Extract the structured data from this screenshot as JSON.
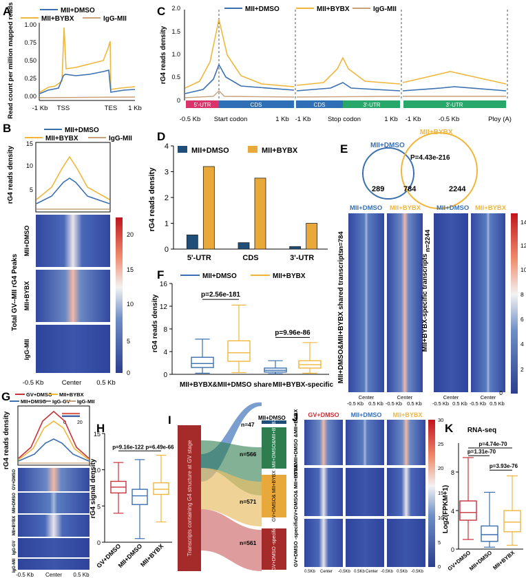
{
  "colors": {
    "dmso": "#3a6fb0",
    "bybx": "#f0b63a",
    "igg": "#c9a07a",
    "gv": "#c8313a",
    "navy": "#1f4e79",
    "gold": "#e8a93a",
    "green": "#2e7d4f",
    "red": "#a52a2a"
  },
  "panels": {
    "A": "A",
    "B": "B",
    "C": "C",
    "D": "D",
    "E": "E",
    "F": "F",
    "G": "G",
    "H": "H",
    "I": "I",
    "J": "J",
    "K": "K"
  },
  "legend": {
    "dmso": "MII+DMSO",
    "bybx": "MII+BYBX",
    "igg": "IgG-MII",
    "gv_dmso": "GV+DMSO",
    "igg_gv": "IgG-GV"
  },
  "panelA": {
    "ylabel": "Read count per million mapped reads",
    "yticks": [
      "0.00",
      "0.25",
      "0.50",
      "0.75",
      "1.00"
    ],
    "xticks": [
      "-1 Kb",
      "TSS",
      "TES",
      "1 Kb"
    ]
  },
  "panelB": {
    "ylabel": "rG4 reads density",
    "yticks": [
      "5",
      "10",
      "15",
      "20"
    ],
    "cbar_ticks": [
      "0",
      "5",
      "10",
      "15",
      "20"
    ],
    "row_labels": [
      "MII+DMSO",
      "MII+BYBX",
      "IgG-MII"
    ],
    "side_label": "Total GV--MII rG4 Peaks",
    "xticks": [
      "-0.5 Kb",
      "Center",
      "0.5 Kb"
    ]
  },
  "panelC": {
    "ylabel": "rG4 reads density",
    "yticks": [
      "0",
      "0.5",
      "1.0",
      "1.5",
      "2.0"
    ],
    "seg1": [
      "5'-UTR",
      "CDS"
    ],
    "seg2": [
      "CDS",
      "3'-UTR"
    ],
    "seg3": [
      "3'-UTR"
    ],
    "xticks1": [
      "-0.5 Kb",
      "Start codon",
      "1 Kb"
    ],
    "xticks2": [
      "-1 Kb",
      "Stop codon",
      "1 Kb"
    ],
    "xticks3": [
      "-1 Kb",
      "-0.5 Kb",
      "Ploy (A)"
    ]
  },
  "chart_data": [
    {
      "type": "bar",
      "panel": "D",
      "title": "",
      "ylabel": "rG4 reads density",
      "categories": [
        "5'-UTR",
        "CDS",
        "3'-UTR"
      ],
      "series": [
        {
          "name": "MII+DMSO",
          "values": [
            0.55,
            0.25,
            0.1
          ]
        },
        {
          "name": "MII+BYBX",
          "values": [
            3.2,
            2.75,
            1.0
          ]
        }
      ],
      "ylim": [
        0,
        4
      ],
      "yticks": [
        "0",
        "1",
        "2",
        "3",
        "4"
      ]
    },
    {
      "type": "box",
      "panel": "F",
      "ylabel": "rG4 reads density",
      "categories": [
        "MII+BYBX&MII+DMSO share",
        "MII+BYBX-specific"
      ],
      "series": [
        {
          "name": "MII+DMSO",
          "boxes": [
            [
              0.2,
              1.2,
              1.9,
              3.0,
              6.2
            ],
            [
              0.1,
              0.4,
              0.7,
              1.1,
              2.4
            ]
          ]
        },
        {
          "name": "MII+BYBX",
          "boxes": [
            [
              0.3,
              2.3,
              3.8,
              5.9,
              12.2
            ],
            [
              0.2,
              1.1,
              1.7,
              2.4,
              5.6
            ]
          ]
        }
      ],
      "ylim": [
        0,
        16
      ],
      "yticks": [
        "0",
        "4",
        "8",
        "12",
        "16"
      ],
      "pvalues": [
        "p=2.56e-181",
        "p=9.96e-86"
      ]
    },
    {
      "type": "box",
      "panel": "H",
      "ylabel": "rG4 signal density",
      "categories": [
        "GV+DMSO",
        "MII+DMSO",
        "MII+BYBX"
      ],
      "boxes": [
        [
          4.0,
          6.8,
          7.6,
          8.4,
          11.0
        ],
        [
          0.5,
          5.2,
          6.4,
          7.3,
          11.4
        ],
        [
          2.8,
          6.6,
          7.3,
          8.2,
          12.0
        ]
      ],
      "ylim": [
        0,
        15
      ],
      "yticks": [
        "0",
        "5",
        "10",
        "15"
      ],
      "pvalues": [
        "p=9.16e-122",
        "p=6.49e-66"
      ]
    },
    {
      "type": "box",
      "panel": "K",
      "title": "RNA-seq",
      "ylabel": "Log2(FPKM+1)",
      "categories": [
        "GV+DMSO",
        "MII+DMSO",
        "MII+BYBX"
      ],
      "boxes": [
        [
          1.0,
          3.0,
          3.8,
          5.0,
          9.5
        ],
        [
          0.2,
          0.8,
          1.5,
          2.4,
          5.9
        ],
        [
          0.4,
          1.8,
          2.8,
          4.0,
          7.6
        ]
      ],
      "ylim": [
        0,
        11
      ],
      "yticks": [
        "0",
        "4",
        "8"
      ],
      "pvalues": [
        "p=4.74e-70",
        "p=1.31e-70",
        "p=3.93e-76"
      ]
    }
  ],
  "panelE": {
    "venn_left": "MII+DMSO",
    "venn_right": "MII+BYBX",
    "pval": "P=4.43e-216",
    "n_left": "289",
    "n_shared": "784",
    "n_right": "2244",
    "n1": "n=784",
    "n2": "n=2244",
    "side1": "MII+DMSO&MII+BYBX shared transcripts",
    "side2": "MII+BYBX-specific transcripts",
    "cbar_ticks": [
      "0",
      "2",
      "4",
      "6",
      "8",
      "10",
      "12",
      "14"
    ],
    "xticks": [
      "Center",
      "-0.5 Kb",
      "0.5 Kb"
    ]
  },
  "panelG": {
    "ylabel": "rG4 reads density",
    "cbar": [
      "0",
      "20"
    ],
    "rows": [
      "GV+DMSO",
      "MII+DMSO",
      "MII+BYBX",
      "IgG-GV",
      "IgG-MII"
    ],
    "xticks": [
      "-0.5 Kb",
      "Center",
      "0.5 Kb"
    ]
  },
  "panelI": {
    "left_label": "Transcripts containing G4 structure at GV stage",
    "top": "MII+DMSO",
    "boxes": [
      "GV&MII+DMSO&MII+BYBX",
      "GV+DMSO& MII+BYBX",
      "GV+DMSO -specific"
    ],
    "ns": [
      "n=47",
      "n=566",
      "n=571",
      "n=561"
    ]
  },
  "panelJ": {
    "cols": [
      "GV+DMSO",
      "MII+DMSO",
      "MII+BYBX"
    ],
    "rows": [
      "GV&MII+DMSO &MII+BYBX",
      "GV+DMSO& MII+BYBX",
      "GV+DMSO -specific"
    ],
    "cbar": [
      "0",
      "5",
      "10",
      "15",
      "20",
      "25",
      "30"
    ],
    "xticks": [
      "0.5Kb",
      "Center",
      "-0.5Kb"
    ]
  }
}
